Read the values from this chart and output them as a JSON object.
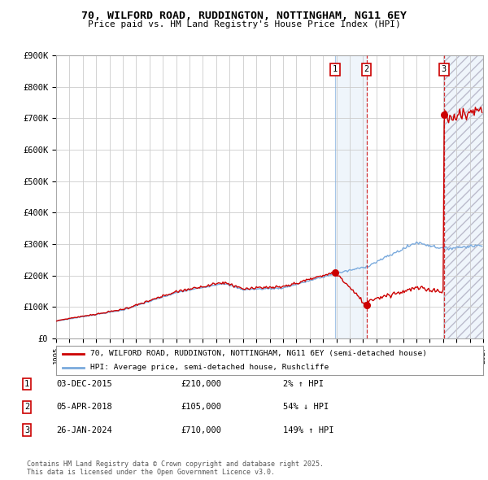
{
  "title_line1": "70, WILFORD ROAD, RUDDINGTON, NOTTINGHAM, NG11 6EY",
  "title_line2": "Price paid vs. HM Land Registry's House Price Index (HPI)",
  "ylim": [
    0,
    900000
  ],
  "ytick_labels": [
    "£0",
    "£100K",
    "£200K",
    "£300K",
    "£400K",
    "£500K",
    "£600K",
    "£700K",
    "£800K",
    "£900K"
  ],
  "ytick_values": [
    0,
    100000,
    200000,
    300000,
    400000,
    500000,
    600000,
    700000,
    800000,
    900000
  ],
  "price_paid_color": "#cc0000",
  "hpi_color": "#7aaadd",
  "background_color": "#ffffff",
  "grid_color": "#cccccc",
  "sale1_date": 2015.92,
  "sale1_price": 210000,
  "sale2_date": 2018.26,
  "sale2_price": 105000,
  "sale3_date": 2024.07,
  "sale3_price": 710000,
  "legend_line1": "70, WILFORD ROAD, RUDDINGTON, NOTTINGHAM, NG11 6EY (semi-detached house)",
  "legend_line2": "HPI: Average price, semi-detached house, Rushcliffe",
  "table_data": [
    [
      "1",
      "03-DEC-2015",
      "£210,000",
      "2% ↑ HPI"
    ],
    [
      "2",
      "05-APR-2018",
      "£105,000",
      "54% ↓ HPI"
    ],
    [
      "3",
      "26-JAN-2024",
      "£710,000",
      "149% ↑ HPI"
    ]
  ],
  "footnote": "Contains HM Land Registry data © Crown copyright and database right 2025.\nThis data is licensed under the Open Government Licence v3.0.",
  "xmin": 1995,
  "xmax": 2027,
  "highlight1_start": 2015.92,
  "highlight1_end": 2018.26,
  "highlight2_start": 2024.07,
  "highlight2_end": 2027
}
